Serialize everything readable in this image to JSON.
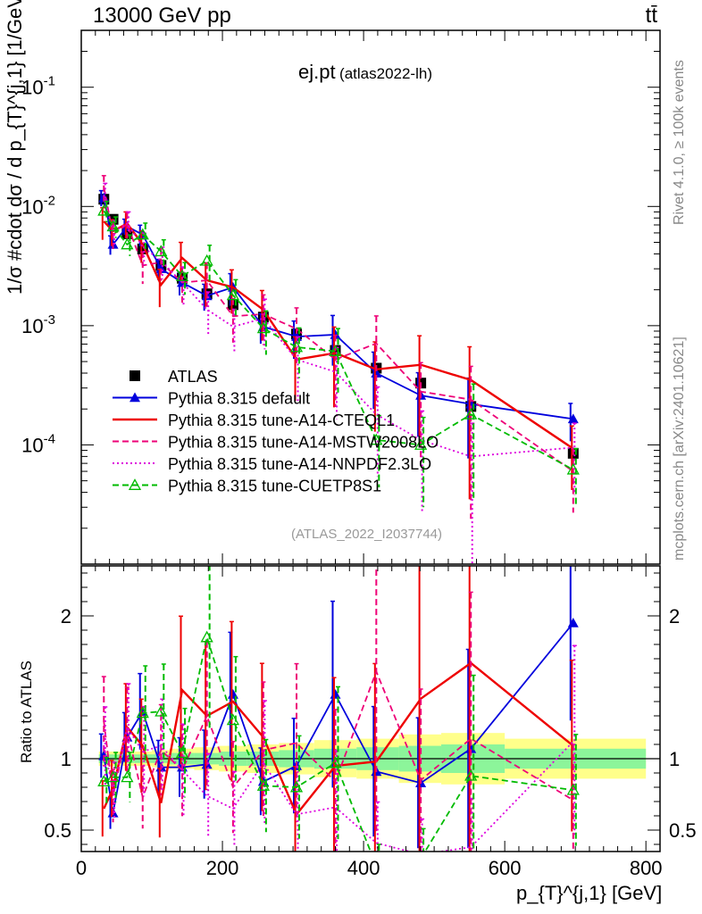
{
  "header": {
    "left": "13000 GeV pp",
    "right": "tt̄"
  },
  "side_info": {
    "rivet": "Rivet 4.1.0, ≥ 100k events",
    "mcplots": "mcplots.cern.ch [arXiv:2401.10621]"
  },
  "chart_data": {
    "type": "line",
    "title": "ej.pt",
    "subtitle": "(atlas2022-lh)",
    "ref_id": "(ATLAS_2022_I2037744)",
    "xlabel": "p_{T}^{j,1} [GeV]",
    "ylabel": "1/σ #cdot dσ / d p_{T}^{j,1} [1/GeV]",
    "ratio_ylabel": "Ratio to ATLAS",
    "xlim": [
      0,
      820
    ],
    "ylim_log": [
      1e-05,
      0.3
    ],
    "ratio_ylim": [
      0.35,
      2.35
    ],
    "x_ticks": [
      "0",
      "200",
      "400",
      "600",
      "800"
    ],
    "x_tick_values": [
      0,
      200,
      400,
      600,
      800
    ],
    "y_ticks": [
      "10^-4",
      "10^-3",
      "10^-2",
      "10^-1"
    ],
    "ratio_ticks": [
      "0.5",
      "1",
      "2"
    ],
    "ratio_tick_values": [
      0.5,
      1,
      2
    ],
    "bins": [
      [
        25,
        40
      ],
      [
        40,
        55
      ],
      [
        55,
        75
      ],
      [
        75,
        100
      ],
      [
        100,
        125
      ],
      [
        125,
        160
      ],
      [
        160,
        195
      ],
      [
        195,
        235
      ],
      [
        235,
        280
      ],
      [
        280,
        330
      ],
      [
        330,
        390
      ],
      [
        390,
        450
      ],
      [
        450,
        510
      ],
      [
        510,
        600
      ],
      [
        600,
        800
      ]
    ],
    "x": [
      32,
      45,
      65,
      87,
      113,
      143,
      178,
      215,
      258,
      305,
      360,
      418,
      481,
      552,
      697
    ],
    "series": [
      {
        "name": "ATLAS",
        "style": "data",
        "color": "#000000",
        "values": [
          0.0115,
          0.0078,
          0.0059,
          0.0044,
          0.0032,
          0.0025,
          0.00185,
          0.0015,
          0.00118,
          0.00085,
          0.00062,
          0.00044,
          0.00033,
          0.00021,
          8.5e-05
        ],
        "band_stat": [
          0.03,
          0.03,
          0.03,
          0.03,
          0.03,
          0.04,
          0.04,
          0.05,
          0.05,
          0.06,
          0.07,
          0.08,
          0.09,
          0.1,
          0.07
        ],
        "band_tot": [
          0.05,
          0.05,
          0.05,
          0.05,
          0.06,
          0.07,
          0.08,
          0.09,
          0.1,
          0.11,
          0.13,
          0.14,
          0.17,
          0.18,
          0.14
        ]
      },
      {
        "name": "Pythia 8.315 default",
        "style": "solid-triangle",
        "color": "#0000dd",
        "values": [
          0.0118,
          0.0048,
          0.0068,
          0.0058,
          0.003,
          0.0023,
          0.00178,
          0.0021,
          0.00098,
          0.00081,
          0.00084,
          0.0004,
          0.00026,
          0.00022,
          0.000165
        ],
        "ratio": [
          1.02,
          0.62,
          1.15,
          1.33,
          0.94,
          0.94,
          0.96,
          1.45,
          0.84,
          0.95,
          1.45,
          0.91,
          0.83,
          1.07,
          1.95
        ],
        "rerr": [
          0.15,
          0.18,
          0.15,
          0.2,
          0.2,
          0.22,
          0.25,
          0.3,
          0.28,
          0.35,
          0.45,
          0.5,
          0.55,
          0.65,
          0.35
        ]
      },
      {
        "name": "Pythia 8.315 tune-A14-CTEQL1",
        "style": "solid",
        "color": "#ee0000",
        "values": [
          0.0075,
          0.0062,
          0.0072,
          0.0048,
          0.0022,
          0.0037,
          0.0024,
          0.0021,
          0.00136,
          0.00052,
          0.00059,
          0.00043,
          0.00047,
          0.00035,
          9.3e-05
        ],
        "ratio": [
          0.65,
          0.79,
          1.22,
          1.09,
          0.69,
          1.48,
          1.3,
          1.4,
          1.15,
          0.61,
          0.95,
          0.98,
          1.42,
          1.67,
          1.09
        ],
        "rerr": [
          0.3,
          0.25,
          0.25,
          0.3,
          0.35,
          0.35,
          0.4,
          0.4,
          0.45,
          0.55,
          0.65,
          0.7,
          0.75,
          0.9,
          0.55
        ]
      },
      {
        "name": "Pythia 8.315 tune-A14-MSTW2008LO",
        "style": "dashed",
        "color": "#ee0077",
        "values": [
          0.0145,
          0.0058,
          0.0071,
          0.0032,
          0.0034,
          0.0023,
          0.0024,
          0.0012,
          0.00125,
          0.00094,
          0.00052,
          0.00071,
          0.00028,
          0.00024,
          6e-05
        ],
        "ratio": [
          1.26,
          0.74,
          1.2,
          0.73,
          1.06,
          0.92,
          1.3,
          0.8,
          1.06,
          1.11,
          0.84,
          1.61,
          0.85,
          1.14,
          0.71
        ],
        "rerr": [
          0.25,
          0.25,
          0.25,
          0.3,
          0.3,
          0.35,
          0.4,
          0.4,
          0.45,
          0.5,
          0.6,
          0.7,
          0.75,
          0.9,
          0.55
        ]
      },
      {
        "name": "Pythia 8.315 tune-A14-NNPDF2.3LO",
        "style": "dotted",
        "color": "#dd00dd",
        "values": [
          0.0125,
          0.0061,
          0.0072,
          0.0046,
          0.0035,
          0.0023,
          0.00137,
          0.00098,
          0.00115,
          0.00052,
          0.00041,
          0.00018,
          0.00011,
          8e-05,
          9.5e-05
        ],
        "ratio": [
          1.09,
          0.78,
          1.22,
          1.05,
          1.09,
          0.92,
          0.74,
          0.65,
          0.97,
          0.61,
          0.66,
          0.41,
          0.33,
          0.38,
          1.12
        ],
        "rerr": [
          0.25,
          0.25,
          0.25,
          0.3,
          0.3,
          0.35,
          0.4,
          0.4,
          0.45,
          0.55,
          0.6,
          0.7,
          0.75,
          0.9,
          0.6
        ]
      },
      {
        "name": "Pythia 8.315 tune-CUETP8S1",
        "style": "dashed-open-triangle",
        "color": "#00bb00",
        "values": [
          0.0092,
          0.0068,
          0.0048,
          0.0058,
          0.0042,
          0.0026,
          0.0035,
          0.0018,
          0.00095,
          0.00066,
          0.00061,
          0.00011,
          0.0001,
          0.00018,
          6.2e-05
        ],
        "ratio": [
          0.84,
          0.87,
          0.87,
          1.32,
          1.33,
          1.04,
          1.85,
          1.27,
          0.81,
          0.8,
          0.97,
          0.25,
          0.3,
          0.88,
          0.78
        ],
        "rerr": [
          0.2,
          0.2,
          0.2,
          0.25,
          0.25,
          0.3,
          0.35,
          0.35,
          0.4,
          0.45,
          0.55,
          0.6,
          0.7,
          0.8,
          0.5
        ]
      }
    ]
  }
}
